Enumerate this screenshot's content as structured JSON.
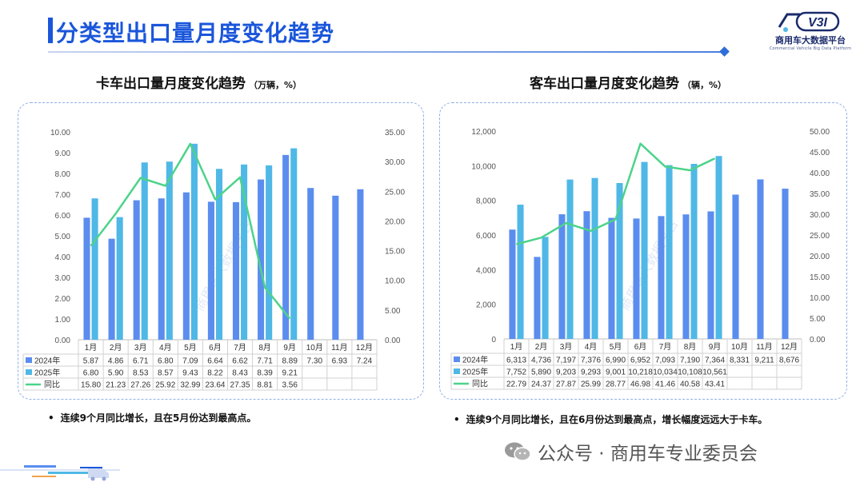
{
  "page": {
    "title": "分类型出口量月度变化趋势",
    "logo_mark": "V3I",
    "logo_name": "商用车大数据平台",
    "logo_sub": "Commercial Vehicle Big Data Platform",
    "footer": "公众号 · 商用车专业委员会",
    "watermark": "商用车大数据平台"
  },
  "colors": {
    "title": "#1a56db",
    "series_2024": "#5b8def",
    "series_2025": "#4fb8e6",
    "series_yoy": "#4cd38a",
    "panel_border": "#8fb0e8"
  },
  "truck": {
    "heading": "卡车出口量月度变化趋势",
    "unit": "（万辆，%）",
    "note": "连续9个月同比增长，且在5月份达到最高点。"
  },
  "bus": {
    "heading": "客车出口量月度变化趋势",
    "unit": "（辆，%）",
    "note": "连续9个月同比增长，且在6月份达到最高点，增长幅度远远大于卡车。"
  },
  "chart_data": [
    {
      "type": "bar",
      "id": "truck",
      "title": "卡车出口量月度变化趋势",
      "categories": [
        "1月",
        "2月",
        "3月",
        "4月",
        "5月",
        "6月",
        "7月",
        "8月",
        "9月",
        "10月",
        "11月",
        "12月"
      ],
      "series": [
        {
          "name": "2024年",
          "kind": "bar",
          "axis": "left",
          "values": [
            5.87,
            4.86,
            6.71,
            6.8,
            7.09,
            6.64,
            6.62,
            7.71,
            8.89,
            7.3,
            6.93,
            7.24
          ],
          "labels": [
            "5.87",
            "4.86",
            "6.71",
            "6.80",
            "7.09",
            "6.64",
            "6.62",
            "7.71",
            "8.89",
            "7.30",
            "6.93",
            "7.24"
          ]
        },
        {
          "name": "2025年",
          "kind": "bar",
          "axis": "left",
          "values": [
            6.8,
            5.9,
            8.53,
            8.57,
            9.43,
            8.22,
            8.43,
            8.39,
            9.21,
            null,
            null,
            null
          ],
          "labels": [
            "6.80",
            "5.90",
            "8.53",
            "8.57",
            "9.43",
            "8.22",
            "8.43",
            "8.39",
            "9.21",
            "",
            "",
            ""
          ]
        },
        {
          "name": "同比",
          "kind": "line",
          "axis": "right",
          "values": [
            15.8,
            21.23,
            27.26,
            25.92,
            32.99,
            23.64,
            27.35,
            8.81,
            3.56,
            null,
            null,
            null
          ],
          "labels": [
            "15.80",
            "21.23",
            "27.26",
            "25.92",
            "32.99",
            "23.64",
            "27.35",
            "8.81",
            "3.56",
            "",
            "",
            ""
          ]
        }
      ],
      "left_axis": {
        "min": 0,
        "max": 10,
        "step": 1,
        "ticks": [
          "0.00",
          "1.00",
          "2.00",
          "3.00",
          "4.00",
          "5.00",
          "6.00",
          "7.00",
          "8.00",
          "9.00",
          "10.00"
        ]
      },
      "right_axis": {
        "min": 0,
        "max": 35,
        "step": 5,
        "ticks": [
          "0.00",
          "5.00",
          "10.00",
          "15.00",
          "20.00",
          "25.00",
          "30.00",
          "35.00"
        ]
      },
      "grid": false,
      "legend": "table-below"
    },
    {
      "type": "bar",
      "id": "bus",
      "title": "客车出口量月度变化趋势",
      "categories": [
        "1月",
        "2月",
        "3月",
        "4月",
        "5月",
        "6月",
        "7月",
        "8月",
        "9月",
        "10月",
        "11月",
        "12月"
      ],
      "series": [
        {
          "name": "2024年",
          "kind": "bar",
          "axis": "left",
          "values": [
            6313,
            4736,
            7197,
            7376,
            6990,
            6952,
            7093,
            7190,
            7364,
            8331,
            9211,
            8676
          ],
          "labels": [
            "6,313",
            "4,736",
            "7,197",
            "7,376",
            "6,990",
            "6,952",
            "7,093",
            "7,190",
            "7,364",
            "8,331",
            "9,211",
            "8,676"
          ]
        },
        {
          "name": "2025年",
          "kind": "bar",
          "axis": "left",
          "values": [
            7752,
            5890,
            9203,
            9293,
            9001,
            10218,
            10034,
            10108,
            10561,
            null,
            null,
            null
          ],
          "labels": [
            "7,752",
            "5,890",
            "9,203",
            "9,293",
            "9,001",
            "10,218",
            "10,034",
            "10,108",
            "10,561",
            "",
            "",
            ""
          ]
        },
        {
          "name": "同比",
          "kind": "line",
          "axis": "right",
          "values": [
            22.79,
            24.37,
            27.87,
            25.99,
            28.77,
            46.98,
            41.46,
            40.58,
            43.41,
            null,
            null,
            null
          ],
          "labels": [
            "22.79",
            "24.37",
            "27.87",
            "25.99",
            "28.77",
            "46.98",
            "41.46",
            "40.58",
            "43.41",
            "",
            "",
            ""
          ]
        }
      ],
      "left_axis": {
        "min": 0,
        "max": 12000,
        "step": 2000,
        "ticks": [
          "0",
          "2,000",
          "4,000",
          "6,000",
          "8,000",
          "10,000",
          "12,000"
        ]
      },
      "right_axis": {
        "min": 0,
        "max": 50,
        "step": 5,
        "ticks": [
          "0.00",
          "5.00",
          "10.00",
          "15.00",
          "20.00",
          "25.00",
          "30.00",
          "35.00",
          "40.00",
          "45.00",
          "50.00"
        ]
      },
      "grid": false,
      "legend": "table-below"
    }
  ]
}
